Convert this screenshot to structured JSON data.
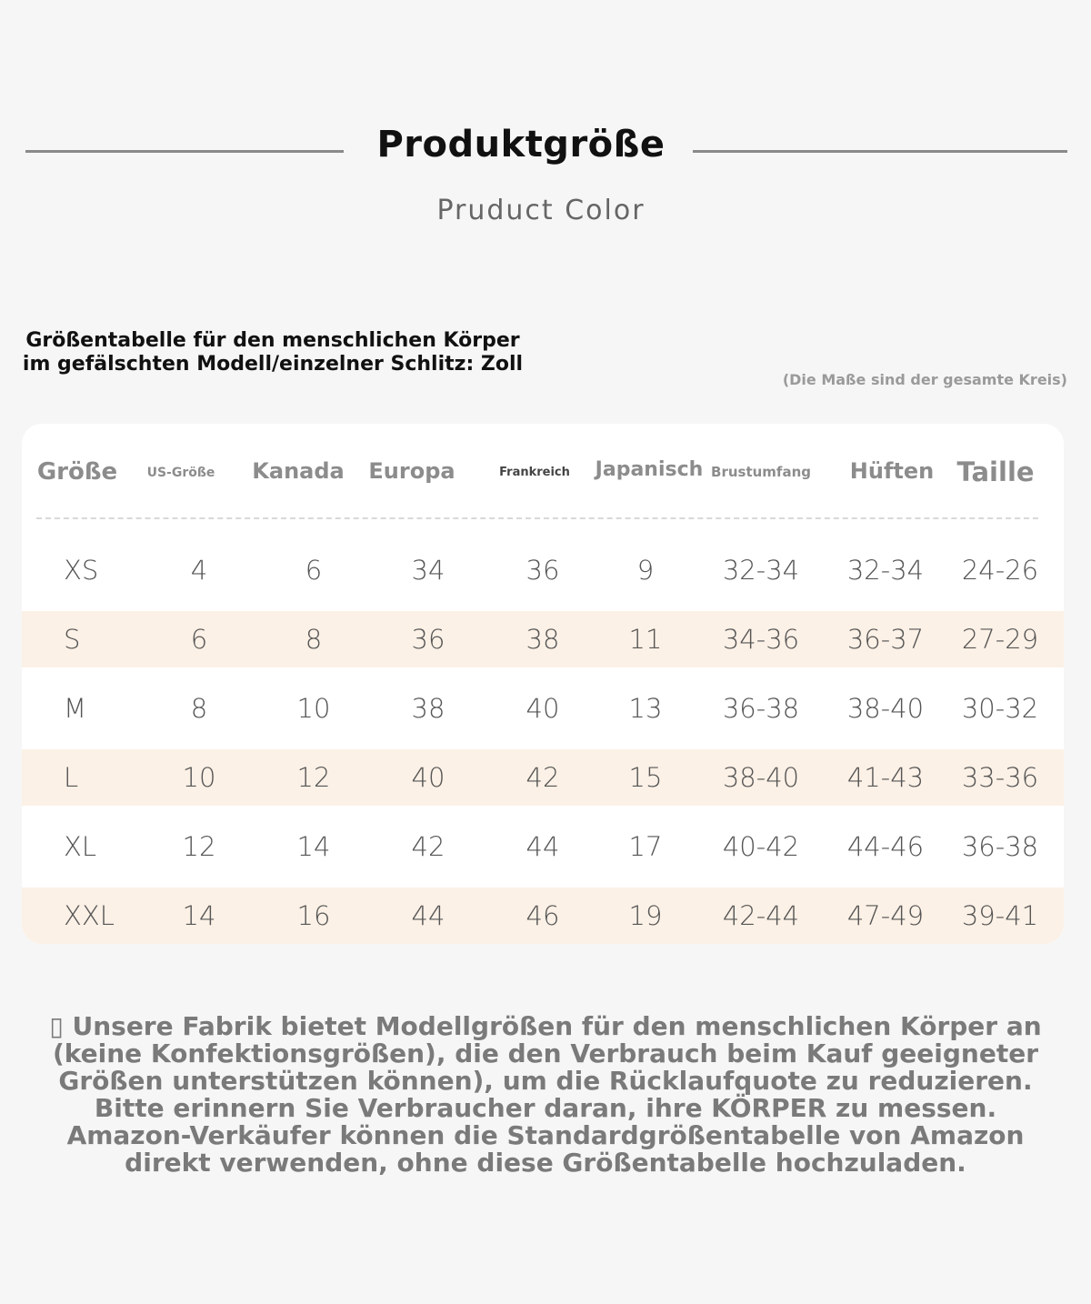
{
  "header": {
    "title": "Produktgröße",
    "subtitle": "Pruduct Color"
  },
  "chart_note": "Größentabelle für den menschlichen Körper im gefälschten Modell/einzelner Schlitz: Zoll",
  "unit_note": "(Die Maße sind der gesamte Kreis)",
  "table": {
    "headers": [
      "Größe",
      "US-Größe",
      "Kanada",
      "Europa",
      "Frankreich",
      "Japanisch",
      "Brustumfang",
      "Hüften",
      "Taille"
    ],
    "rows": [
      [
        "XS",
        "4",
        "6",
        "34",
        "36",
        "9",
        "32-34",
        "32-34",
        "24-26"
      ],
      [
        "S",
        "6",
        "8",
        "36",
        "38",
        "11",
        "34-36",
        "36-37",
        "27-29"
      ],
      [
        "M",
        "8",
        "10",
        "38",
        "40",
        "13",
        "36-38",
        "38-40",
        "30-32"
      ],
      [
        "L",
        "10",
        "12",
        "40",
        "42",
        "15",
        "38-40",
        "41-43",
        "33-36"
      ],
      [
        "XL",
        "12",
        "14",
        "42",
        "44",
        "17",
        "40-42",
        "44-46",
        "36-38"
      ],
      [
        "XXL",
        "14",
        "16",
        "44",
        "46",
        "19",
        "42-44",
        "47-49",
        "39-41"
      ]
    ]
  },
  "footer": "▯ Unsere Fabrik bietet Modellgrößen für den menschlichen Körper an (keine Konfektionsgrößen), die den Verbrauch beim Kauf geeigneter Größen unterstützen können), um die Rücklaufquote zu reduzieren. Bitte erinnern Sie Verbraucher daran, ihre KÖRPER zu messen. Amazon-Verkäufer können die Standardgrößentabelle von Amazon direkt verwenden, ohne diese Größentabelle hochzuladen."
}
